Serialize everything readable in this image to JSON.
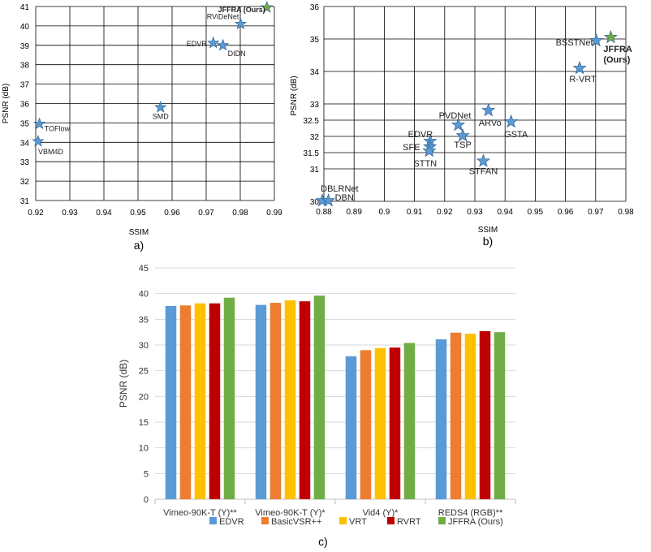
{
  "colors": {
    "star_fill": "#5b9bd5",
    "star_stroke": "#2f5f8f",
    "star_ours_fill": "#70ad47",
    "bar_series": [
      "#5b9bd5",
      "#ed7d31",
      "#ffc000",
      "#c00000",
      "#70ad47"
    ],
    "grid": "#000000",
    "grid_c": "#d9d9d9"
  },
  "chart_data": [
    {
      "id": "a",
      "type": "scatter",
      "caption": "a)",
      "xlabel": "SSIM",
      "ylabel": "PSNR (dB)",
      "xlim": [
        0.92,
        0.99
      ],
      "ylim": [
        31,
        41
      ],
      "xticks": [
        0.92,
        0.93,
        0.94,
        0.95,
        0.96,
        0.97,
        0.98,
        0.99
      ],
      "yticks": [
        31,
        32,
        33,
        34,
        35,
        36,
        37,
        38,
        39,
        40,
        41
      ],
      "points": [
        {
          "label": "JFFRA (Ours)",
          "x": 0.9878,
          "y": 40.95,
          "ours": true,
          "bold": true
        },
        {
          "label": "RViDeNet",
          "x": 0.9801,
          "y": 40.1
        },
        {
          "label": "EDVR",
          "x": 0.9721,
          "y": 39.12
        },
        {
          "label": "DIDN",
          "x": 0.9749,
          "y": 39.0
        },
        {
          "label": "SMD",
          "x": 0.9566,
          "y": 35.8
        },
        {
          "label": "TOFlow",
          "x": 0.9211,
          "y": 34.95
        },
        {
          "label": "VBM4D",
          "x": 0.9207,
          "y": 34.05
        }
      ]
    },
    {
      "id": "b",
      "type": "scatter",
      "caption": "b)",
      "xlabel": "SSIM",
      "ylabel": "PSNR (dB)",
      "xlim": [
        0.88,
        0.98
      ],
      "ylim": [
        30,
        36
      ],
      "xticks": [
        0.88,
        0.89,
        0.9,
        0.91,
        0.92,
        0.93,
        0.94,
        0.95,
        0.96,
        0.97,
        0.98
      ],
      "xticklabels": [
        "0.88",
        "0.89",
        "0.9",
        "0.91",
        "0.92",
        "0.93",
        "0.94",
        "0.95",
        "0.96",
        "0.97",
        "0.98"
      ],
      "yticks": [
        30,
        30.5,
        31,
        31.5,
        32,
        32.5,
        33,
        33.5,
        34,
        34.5,
        35,
        35.5,
        36
      ],
      "yticklabels": [
        "30",
        "",
        "31",
        "31.5",
        "32",
        "32.5",
        "33",
        "",
        "34",
        "",
        "35",
        "",
        "36"
      ],
      "points": [
        {
          "label": "JFFRA",
          "label2": "(Ours)",
          "x": 0.975,
          "y": 35.05,
          "ours": true,
          "bold": true
        },
        {
          "label": "BSSTNet",
          "x": 0.9702,
          "y": 34.95
        },
        {
          "label": "R-VRT",
          "x": 0.9647,
          "y": 34.1
        },
        {
          "label": "ARVo",
          "x": 0.9345,
          "y": 32.8
        },
        {
          "label": "GSTA",
          "x": 0.942,
          "y": 32.45
        },
        {
          "label": "PVDNet",
          "x": 0.9245,
          "y": 32.35
        },
        {
          "label": "TSP",
          "x": 0.926,
          "y": 32.02
        },
        {
          "label": "EDVR",
          "x": 0.9152,
          "y": 31.85
        },
        {
          "label": "SFE",
          "x": 0.9151,
          "y": 31.68
        },
        {
          "label": "STTN",
          "x": 0.9149,
          "y": 31.55
        },
        {
          "label": "STFAN",
          "x": 0.9328,
          "y": 31.24
        },
        {
          "label": "DBLRNet",
          "x": 0.8795,
          "y": 30.02
        },
        {
          "label": "DBN",
          "x": 0.8815,
          "y": 30.02
        }
      ]
    },
    {
      "id": "c",
      "type": "bar",
      "caption": "c)",
      "ylabel": "PSNR (dB)",
      "ylim": [
        0,
        45
      ],
      "yticks": [
        0,
        5,
        10,
        15,
        20,
        25,
        30,
        35,
        40,
        45
      ],
      "categories": [
        "Vimeo-90K-T (Y)**",
        "Vimeo-90K-T (Y)*",
        "Vid4 (Y)*",
        "REDS4 (RGB)**"
      ],
      "series": [
        {
          "name": "EDVR",
          "values": [
            37.6,
            37.8,
            27.8,
            31.1
          ]
        },
        {
          "name": "BasicVSR++",
          "values": [
            37.7,
            38.2,
            29.0,
            32.4
          ]
        },
        {
          "name": "VRT",
          "values": [
            38.1,
            38.7,
            29.4,
            32.2
          ]
        },
        {
          "name": "RVRT",
          "values": [
            38.1,
            38.5,
            29.5,
            32.7
          ]
        },
        {
          "name": "JFFRA (Ours)",
          "values": [
            39.2,
            39.6,
            30.4,
            32.5
          ]
        }
      ]
    }
  ]
}
